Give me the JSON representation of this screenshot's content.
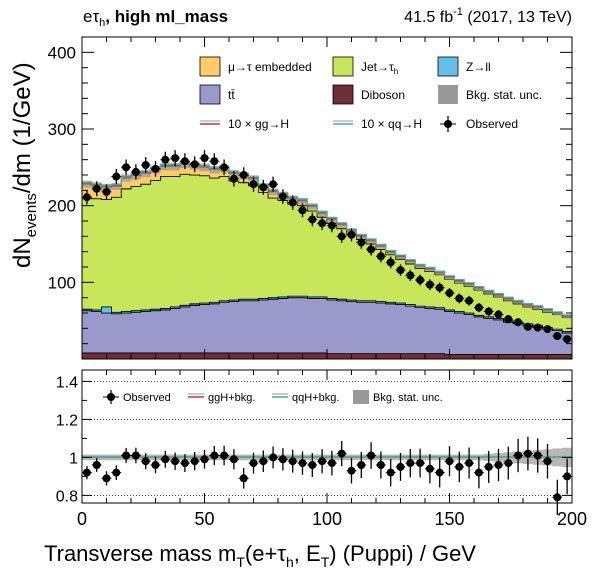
{
  "header": {
    "channel": "eτ",
    "channel_sub": "h",
    "category": ", high ml_mass",
    "lumi_value": "41.5 fb",
    "lumi_sup": "-1",
    "lumi_rest": " (2017, 13 TeV)"
  },
  "chart_data": {
    "type": "stacked-histogram",
    "title": "eτh, high ml_mass",
    "xlabel": "Transverse mass m_T(e+τh, ET-miss) (Puppi) / GeV",
    "xlabel_parts": {
      "main": "Transverse mass m",
      "sub1": "T",
      "mid": "(e+τ",
      "sub2": "h",
      "met": ", E",
      "metsub": "T",
      "tail": ") (Puppi) / GeV"
    },
    "ylabel_parts": {
      "main": "dN",
      "sub": "events",
      "tail": "/dm (1/GeV)"
    },
    "xlim": [
      0,
      200
    ],
    "ylim": [
      0,
      420
    ],
    "x_ticks": [
      0,
      50,
      100,
      150,
      200
    ],
    "y_ticks": [
      100,
      200,
      300,
      400
    ],
    "bin_width": 4,
    "bin_edges_start": 0,
    "colors": {
      "embedded": "#ffcc66",
      "jetfake": "#c8e65a",
      "zll": "#64c0e8",
      "ttbar": "#9999cc",
      "diboson": "#6f2d35",
      "stat": "#999999",
      "ggh": "#cc3333",
      "qqh": "#33bbaa",
      "data": "#000000"
    },
    "series": [
      {
        "name": "Diboson",
        "key": "diboson",
        "values": [
          8,
          8,
          8,
          8,
          8,
          8,
          8,
          8,
          8,
          8,
          8,
          8,
          8,
          8,
          8,
          8,
          8,
          8,
          8,
          8,
          8,
          8,
          8,
          8,
          8,
          7,
          7,
          7,
          7,
          7,
          7,
          7,
          7,
          7,
          7,
          7,
          7,
          6,
          6,
          6,
          6,
          6,
          6,
          6,
          6,
          6,
          6,
          6,
          6,
          6
        ]
      },
      {
        "name": "tt̄",
        "key": "ttbar",
        "values": [
          55,
          54,
          52,
          51,
          52,
          53,
          54,
          55,
          56,
          58,
          60,
          62,
          63,
          64,
          66,
          67,
          68,
          68,
          69,
          70,
          71,
          72,
          72,
          71,
          71,
          70,
          69,
          68,
          67,
          67,
          66,
          65,
          64,
          62,
          60,
          59,
          58,
          56,
          54,
          52,
          49,
          47,
          45,
          42,
          40,
          38,
          36,
          33,
          31,
          28
        ]
      },
      {
        "name": "Z→ll",
        "key": "zll",
        "values": [
          2,
          2,
          8,
          2,
          2,
          2,
          2,
          2,
          2,
          2,
          2,
          2,
          2,
          2,
          2,
          2,
          2,
          2,
          2,
          2,
          2,
          2,
          2,
          2,
          2,
          2,
          2,
          2,
          2,
          2,
          2,
          2,
          2,
          2,
          2,
          2,
          2,
          2,
          2,
          2,
          2,
          2,
          2,
          2,
          2,
          2,
          2,
          2,
          2,
          2
        ]
      },
      {
        "name": "Jet→τh",
        "key": "jetfake",
        "values": [
          145,
          145,
          140,
          150,
          160,
          162,
          164,
          168,
          172,
          170,
          171,
          168,
          166,
          162,
          162,
          155,
          152,
          148,
          138,
          130,
          126,
          120,
          118,
          112,
          104,
          98,
          92,
          86,
          80,
          74,
          68,
          62,
          57,
          53,
          49,
          46,
          43,
          40,
          37,
          35,
          33,
          30,
          28,
          26,
          24,
          22,
          21,
          20,
          19,
          18
        ]
      },
      {
        "name": "μ→τ embedded",
        "key": "embedded",
        "values": [
          18,
          17,
          16,
          14,
          14,
          14,
          14,
          14,
          13,
          13,
          13,
          12,
          11,
          11,
          10,
          10,
          9,
          9,
          8,
          8,
          7,
          7,
          6,
          6,
          5,
          5,
          5,
          4,
          4,
          4,
          4,
          3,
          3,
          3,
          3,
          3,
          2,
          2,
          2,
          2,
          2,
          2,
          2,
          2,
          2,
          2,
          2,
          2,
          1,
          1
        ]
      }
    ],
    "observed": [
      211,
      222,
      218,
      238,
      250,
      244,
      253,
      248,
      260,
      262,
      258,
      254,
      262,
      258,
      250,
      235,
      240,
      228,
      224,
      228,
      212,
      204,
      194,
      182,
      177,
      174,
      160,
      162,
      152,
      143,
      134,
      126,
      116,
      109,
      103,
      97,
      93,
      86,
      79,
      76,
      67,
      62,
      58,
      52,
      48,
      42,
      41,
      39,
      30,
      26
    ],
    "ratio": {
      "ylim": [
        0.76,
        1.46
      ],
      "y_ticks": [
        0.8,
        1,
        1.2,
        1.4
      ],
      "y_tick_labels": [
        "0.8",
        "1",
        "1.2",
        "1.4"
      ],
      "values": [
        0.92,
        0.96,
        0.89,
        0.92,
        1.01,
        1.01,
        0.98,
        0.96,
        0.99,
        0.98,
        0.97,
        0.98,
        0.99,
        1.01,
        1.01,
        0.99,
        0.89,
        0.97,
        0.98,
        1.0,
        0.99,
        0.98,
        0.97,
        0.96,
        0.98,
        0.97,
        1.02,
        0.93,
        0.96,
        1.01,
        0.96,
        0.92,
        0.95,
        0.97,
        0.97,
        0.94,
        0.92,
        0.98,
        0.95,
        0.97,
        0.92,
        0.95,
        0.96,
        0.97,
        1.01,
        1.02,
        1.01,
        0.98,
        0.79,
        0.9
      ]
    },
    "legend_main": [
      {
        "label": "μ→τ embedded",
        "key": "embedded",
        "kind": "box"
      },
      {
        "label": "Jet→τ",
        "sub": "h",
        "key": "jetfake",
        "kind": "box"
      },
      {
        "label": "Z→ll",
        "key": "zll",
        "kind": "box"
      },
      {
        "label": "tt̄",
        "key": "ttbar",
        "kind": "box"
      },
      {
        "label": "Diboson",
        "key": "diboson",
        "kind": "box"
      },
      {
        "label": "Bkg. stat. unc.",
        "key": "stat",
        "kind": "box"
      },
      {
        "label": "10 × gg→H",
        "key": "ggh",
        "kind": "line"
      },
      {
        "label": "10 × qq→H",
        "key": "qqh",
        "kind": "line"
      },
      {
        "label": "Observed",
        "key": "data",
        "kind": "marker"
      }
    ],
    "legend_ratio": [
      {
        "label": "Observed",
        "key": "data",
        "kind": "marker"
      },
      {
        "label": "ggH+bkg.",
        "key": "ggh",
        "kind": "line"
      },
      {
        "label": "qqH+bkg.",
        "key": "qqh",
        "kind": "line"
      },
      {
        "label": "Bkg. stat. unc.",
        "key": "stat",
        "kind": "box"
      }
    ]
  }
}
